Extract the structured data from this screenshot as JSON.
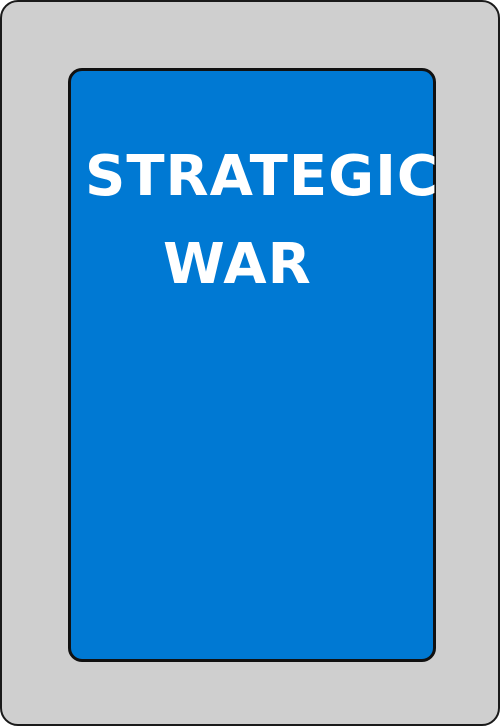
{
  "card": {
    "title_line_1": "STRATEGIC",
    "title_line_2": "WAR",
    "colors": {
      "frame": "#cfcfcf",
      "face": "#0079d3",
      "border": "#111111",
      "text": "#ffffff"
    }
  }
}
